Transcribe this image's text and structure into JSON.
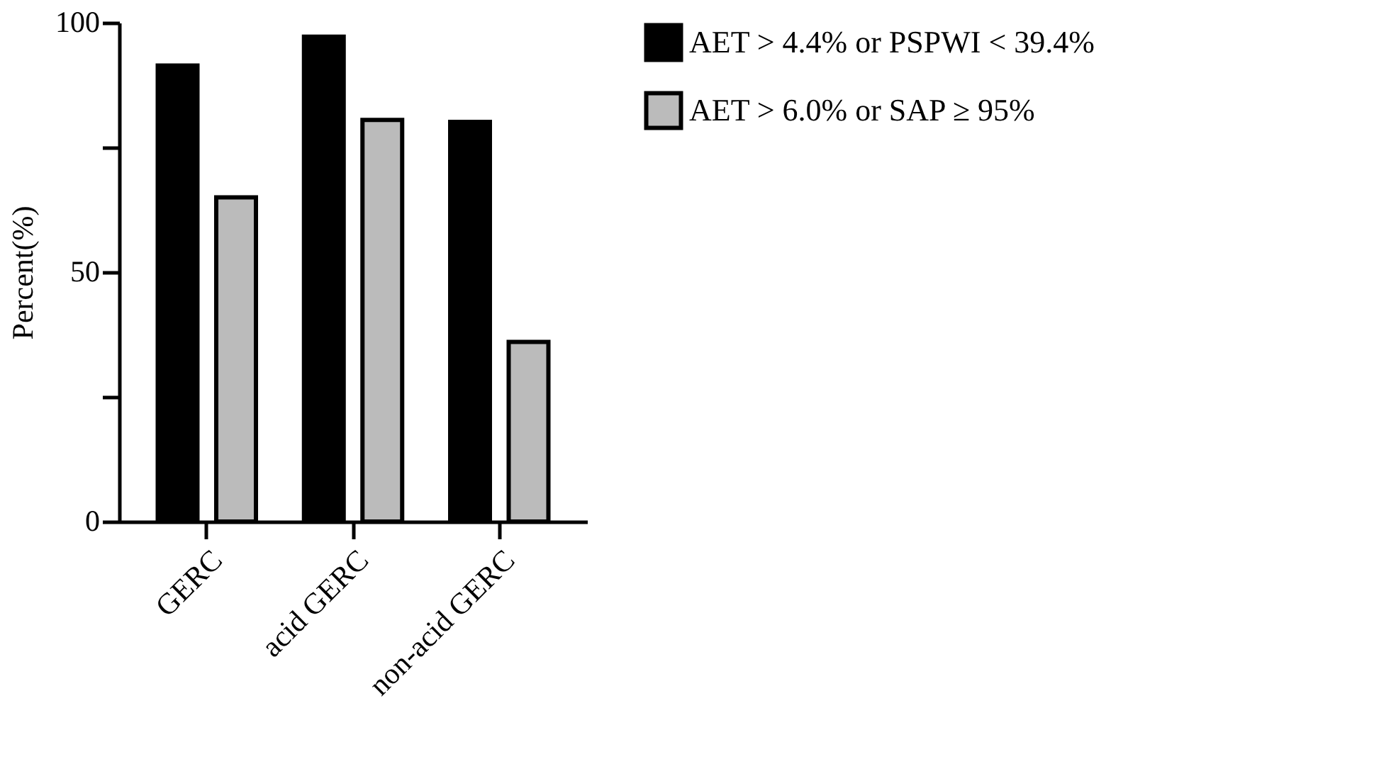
{
  "chart_data": {
    "type": "bar",
    "ylabel": "Percent(%)",
    "categories": [
      "GERC",
      "acid GERC",
      "non-acid GERC"
    ],
    "series": [
      {
        "name": "AET > 4.4% or PSPWI < 39.4%",
        "color": "#000000",
        "values": [
          91.4,
          97.2,
          80.1
        ]
      },
      {
        "name": "AET > 6.0% or SAP ≥  95%",
        "color": "#bbbbbb",
        "values": [
          65,
          80.5,
          36
        ]
      }
    ],
    "ylim": [
      0,
      100
    ],
    "yticks": [
      0,
      {
        "value": 25,
        "label": null
      },
      50,
      {
        "value": 75,
        "label": null
      },
      100
    ],
    "grid": false,
    "legend": "top right"
  }
}
